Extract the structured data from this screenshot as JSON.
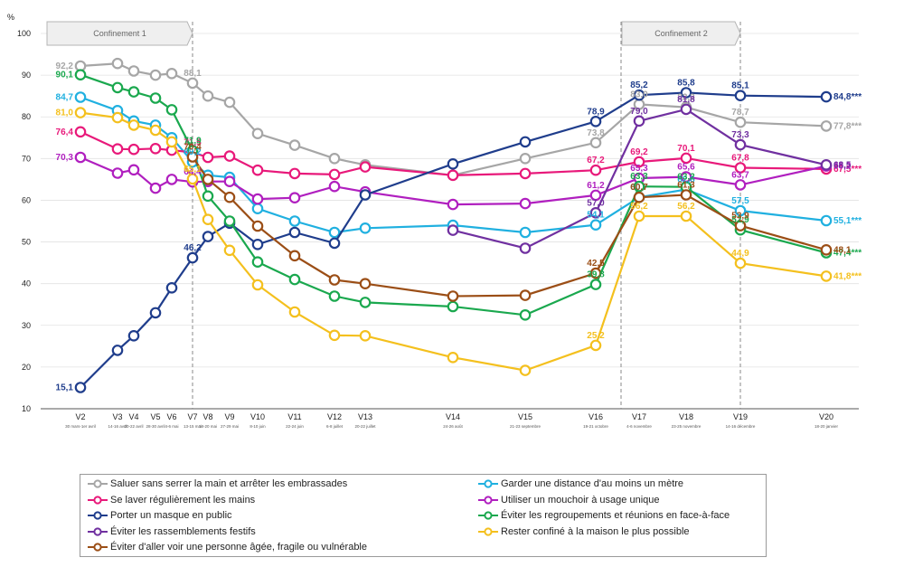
{
  "chart_data": {
    "type": "line",
    "ylabel": "%",
    "ylim": [
      10,
      100
    ],
    "yticks": [
      10,
      20,
      30,
      40,
      50,
      60,
      70,
      80,
      90,
      100
    ],
    "periods": [
      {
        "label": "Confinement 1",
        "from": "V2",
        "to": "V7"
      },
      {
        "label": "Confinement 2",
        "from": "V17",
        "to": "V19"
      }
    ],
    "categories": [
      {
        "label": "V2",
        "sub": "30 mars-1er avril"
      },
      {
        "label": "V3",
        "sub": "14-16 avril"
      },
      {
        "label": "V4",
        "sub": "20-22 avril"
      },
      {
        "label": "V5",
        "sub": "28-30 avril"
      },
      {
        "label": "V6",
        "sub": "4-6 mai"
      },
      {
        "label": "V7",
        "sub": "13-15 mai"
      },
      {
        "label": "V8",
        "sub": "18-20 mai"
      },
      {
        "label": "V9",
        "sub": "27-29 mai"
      },
      {
        "label": "V10",
        "sub": "8-10 juin"
      },
      {
        "label": "V11",
        "sub": "22-24 juin"
      },
      {
        "label": "V12",
        "sub": "6-8 juillet"
      },
      {
        "label": "V13",
        "sub": "20-22 juillet"
      },
      {
        "label": "V14",
        "sub": "24-26 août"
      },
      {
        "label": "V15",
        "sub": "21-23 septembre"
      },
      {
        "label": "V16",
        "sub": "19-21 octobre"
      },
      {
        "label": "V17",
        "sub": "4-6 novembre"
      },
      {
        "label": "V18",
        "sub": "23-25 novembre"
      },
      {
        "label": "V19",
        "sub": "14-16 décembre"
      },
      {
        "label": "V20",
        "sub": "18-20 janvier"
      }
    ],
    "series": [
      {
        "name": "Saluer sans serrer la main et arrêter les embrassades",
        "color": "#a6a6a6",
        "values": [
          92.2,
          92.8,
          91,
          90,
          90.4,
          88.1,
          85,
          83.5,
          76,
          73.2,
          70,
          68.5,
          66,
          70,
          73.8,
          83,
          82.3,
          78.7,
          77.8
        ],
        "labels": [
          {
            "i": 0,
            "text": "92,2"
          },
          {
            "i": 5,
            "text": "88,1"
          },
          {
            "i": 14,
            "text": "73,8"
          },
          {
            "i": 15,
            "text": "83,0"
          },
          {
            "i": 16,
            "text": "82,3"
          },
          {
            "i": 17,
            "text": "78,7"
          },
          {
            "i": 18,
            "text": "77,8***"
          }
        ]
      },
      {
        "name": "Garder une distance d'au moins un mètre",
        "color": "#20b0e0",
        "values": [
          84.7,
          81.5,
          79,
          78,
          75,
          69.2,
          66,
          65.5,
          58,
          55,
          52.3,
          53.3,
          54,
          52.3,
          54.1,
          60.7,
          62.6,
          57.5,
          55.1
        ],
        "labels": [
          {
            "i": 0,
            "text": "84,7"
          },
          {
            "i": 5,
            "text": "69,2"
          },
          {
            "i": 14,
            "text": "54,1"
          },
          {
            "i": 15,
            "text": "60,7"
          },
          {
            "i": 16,
            "text": "62,6"
          },
          {
            "i": 17,
            "text": "57,5"
          },
          {
            "i": 18,
            "text": "55,1***"
          }
        ]
      },
      {
        "name": "Se laver régulièrement les mains",
        "color": "#e8197a",
        "values": [
          76.4,
          72.3,
          72.2,
          72.4,
          72,
          71.5,
          70.3,
          70.6,
          67.2,
          66.4,
          66.2,
          68,
          66,
          66.4,
          67.2,
          69.2,
          70.1,
          67.8,
          67.5
        ],
        "labels": [
          {
            "i": 0,
            "text": "76,4"
          },
          {
            "i": 5,
            "text": "71,5"
          },
          {
            "i": 14,
            "text": "67,2"
          },
          {
            "i": 15,
            "text": "69,2"
          },
          {
            "i": 16,
            "text": "70,1"
          },
          {
            "i": 17,
            "text": "67,8"
          },
          {
            "i": 18,
            "text": "67,5***"
          }
        ]
      },
      {
        "name": "Utiliser un mouchoir à usage unique",
        "color": "#b01fbf",
        "values": [
          70.3,
          66.5,
          67.3,
          62.9,
          65,
          64.4,
          64.5,
          64.5,
          60.3,
          60.6,
          63.3,
          62,
          59,
          59.2,
          61.2,
          65.3,
          65.6,
          63.7,
          68.2
        ],
        "labels": [
          {
            "i": 0,
            "text": "70,3"
          },
          {
            "i": 5,
            "text": "64,4"
          },
          {
            "i": 14,
            "text": "61,2"
          },
          {
            "i": 15,
            "text": "65,3"
          },
          {
            "i": 16,
            "text": "65,6"
          },
          {
            "i": 17,
            "text": "63,7"
          },
          {
            "i": 18,
            "text": "68,2"
          }
        ]
      },
      {
        "name": "Porter un masque en public",
        "color": "#1f3d8c",
        "values": [
          15.1,
          24,
          27.5,
          33,
          39,
          46.2,
          51.3,
          54.5,
          49.4,
          52.3,
          49.7,
          61.3,
          68.7,
          74,
          78.9,
          85.2,
          85.8,
          85.1,
          84.8
        ],
        "labels": [
          {
            "i": 0,
            "text": "15,1"
          },
          {
            "i": 5,
            "text": "46,2"
          },
          {
            "i": 14,
            "text": "78,9"
          },
          {
            "i": 15,
            "text": "85,2"
          },
          {
            "i": 16,
            "text": "85,8"
          },
          {
            "i": 17,
            "text": "85,1"
          },
          {
            "i": 18,
            "text": "84,8***"
          }
        ]
      },
      {
        "name": "Éviter les regroupements et réunions en face-à-face",
        "color": "#1aa84e",
        "values": [
          90.1,
          87,
          86,
          84.5,
          81.7,
          71.9,
          61,
          55,
          45.2,
          41,
          37,
          35.5,
          34.5,
          32.5,
          39.8,
          63.3,
          63.2,
          52.9,
          47.4
        ],
        "labels": [
          {
            "i": 0,
            "text": "90,1"
          },
          {
            "i": 5,
            "text": "71,9"
          },
          {
            "i": 14,
            "text": "39,8"
          },
          {
            "i": 15,
            "text": "63,3"
          },
          {
            "i": 16,
            "text": "63,2"
          },
          {
            "i": 17,
            "text": "52,9"
          },
          {
            "i": 18,
            "text": "47,4***"
          }
        ]
      },
      {
        "name": "Éviter les rassemblements festifs",
        "color": "#7030a0",
        "values": [
          null,
          null,
          null,
          null,
          null,
          null,
          null,
          null,
          null,
          null,
          null,
          null,
          52.8,
          48.5,
          57,
          79,
          81.8,
          73.3,
          68.5
        ],
        "labels": [
          {
            "i": 14,
            "text": "57,0"
          },
          {
            "i": 15,
            "text": "79,0"
          },
          {
            "i": 16,
            "text": "81,8"
          },
          {
            "i": 17,
            "text": "73,3"
          },
          {
            "i": 18,
            "text": "68,5"
          }
        ]
      },
      {
        "name": "Rester confiné à la maison le plus possible",
        "color": "#f4c01e",
        "values": [
          81,
          79.8,
          78,
          76.8,
          74,
          65.1,
          55.4,
          48,
          39.7,
          33.2,
          27.6,
          27.5,
          22.3,
          19.2,
          25.2,
          56.2,
          56.2,
          44.9,
          41.8
        ],
        "labels": [
          {
            "i": 0,
            "text": "81,0"
          },
          {
            "i": 5,
            "text": "65,1"
          },
          {
            "i": 14,
            "text": "25,2"
          },
          {
            "i": 15,
            "text": "56,2"
          },
          {
            "i": 16,
            "text": "56,2"
          },
          {
            "i": 17,
            "text": "44,9"
          },
          {
            "i": 18,
            "text": "41,8***"
          }
        ]
      },
      {
        "name": "Éviter d'aller voir une personne âgée, fragile ou vulnérable",
        "color": "#9b4e16",
        "values": [
          null,
          null,
          null,
          null,
          null,
          70.4,
          65,
          60.7,
          53.8,
          46.7,
          40.9,
          40,
          37,
          37.2,
          42.5,
          60.7,
          61.3,
          53.9,
          48.1
        ],
        "labels": [
          {
            "i": 5,
            "text": "70,4"
          },
          {
            "i": 14,
            "text": "42,5"
          },
          {
            "i": 15,
            "text": "60,7"
          },
          {
            "i": 16,
            "text": "61,3"
          },
          {
            "i": 17,
            "text": "53,9"
          },
          {
            "i": 18,
            "text": "48,1"
          }
        ]
      }
    ]
  },
  "legend": [
    {
      "series": 0,
      "col": 0,
      "row": 0
    },
    {
      "series": 1,
      "col": 1,
      "row": 0
    },
    {
      "series": 2,
      "col": 0,
      "row": 1
    },
    {
      "series": 3,
      "col": 1,
      "row": 1
    },
    {
      "series": 4,
      "col": 0,
      "row": 2
    },
    {
      "series": 5,
      "col": 1,
      "row": 2
    },
    {
      "series": 6,
      "col": 0,
      "row": 3
    },
    {
      "series": 7,
      "col": 1,
      "row": 3
    },
    {
      "series": 8,
      "col": 0,
      "row": 4
    }
  ]
}
